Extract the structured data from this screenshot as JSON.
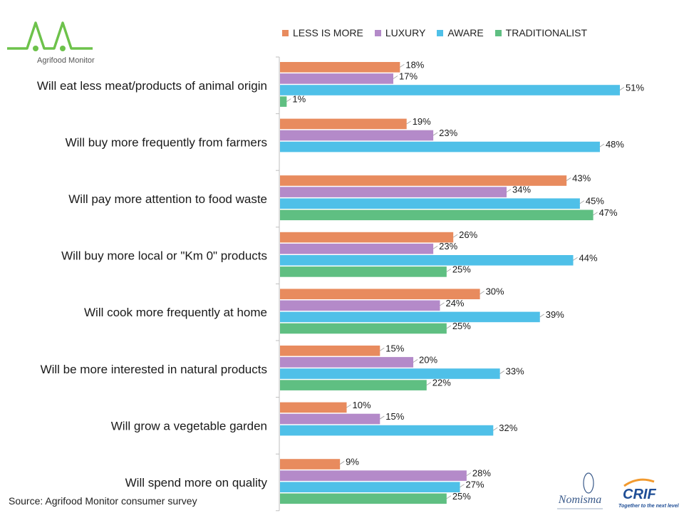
{
  "brand": {
    "logo_text": "Agrifood Monitor",
    "logo_color": "#6dc24b"
  },
  "chart_data": {
    "type": "bar",
    "orientation": "horizontal",
    "categories": [
      "Will eat less meat/products of animal origin",
      "Will buy more frequently from farmers",
      "Will pay more attention to food waste",
      "Will buy more local or \"Km 0\" products",
      "Will cook more frequently at home",
      "Will be more interested in natural products",
      "Will grow a vegetable garden",
      "Will spend more on quality"
    ],
    "series": [
      {
        "name": "LESS IS MORE",
        "color": "#e88b5e",
        "values": [
          18,
          19,
          43,
          26,
          30,
          15,
          10,
          9
        ]
      },
      {
        "name": "LUXURY",
        "color": "#b48ac9",
        "values": [
          17,
          23,
          34,
          23,
          24,
          20,
          15,
          28
        ]
      },
      {
        "name": "AWARE",
        "color": "#4fc0e8",
        "values": [
          51,
          48,
          45,
          44,
          39,
          33,
          32,
          27
        ]
      },
      {
        "name": "TRADITIONALIST",
        "color": "#5fbf82",
        "values": [
          1,
          null,
          47,
          25,
          25,
          22,
          null,
          25
        ]
      }
    ],
    "value_suffix": "%",
    "legend_position": "top",
    "grid": false,
    "xlim": [
      0,
      52
    ]
  },
  "footer": {
    "source": "Source:  Agrifood Monitor consumer survey"
  },
  "partners": {
    "nomisma": "Nomisma",
    "crif": "CRIF",
    "crif_tagline": "Together to the next level"
  }
}
